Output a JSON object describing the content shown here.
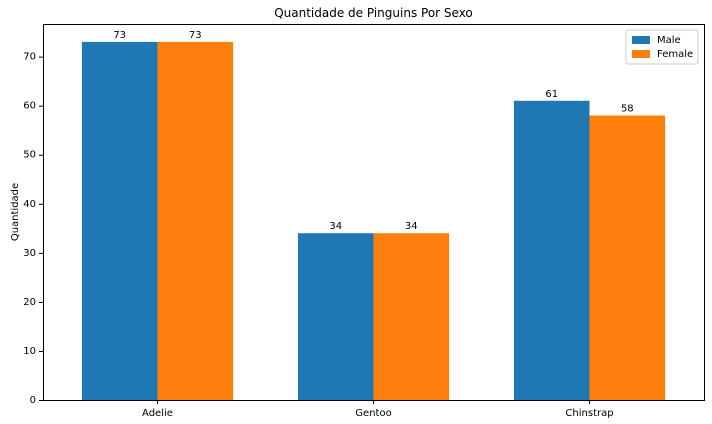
{
  "chart_data": {
    "type": "bar",
    "title": "Quantidade de Pinguins Por Sexo",
    "xlabel": "",
    "ylabel": "Quantidade",
    "categories": [
      "Adelie",
      "Gentoo",
      "Chinstrap"
    ],
    "series": [
      {
        "name": "Male",
        "values": [
          73,
          34,
          61
        ],
        "color": "#1f77b4"
      },
      {
        "name": "Female",
        "values": [
          73,
          34,
          58
        ],
        "color": "#ff7f0e"
      }
    ],
    "ylim": [
      0,
      76.65
    ],
    "yticks": [
      0,
      10,
      20,
      30,
      40,
      50,
      60,
      70
    ],
    "grid": false,
    "legend": "top-right"
  }
}
